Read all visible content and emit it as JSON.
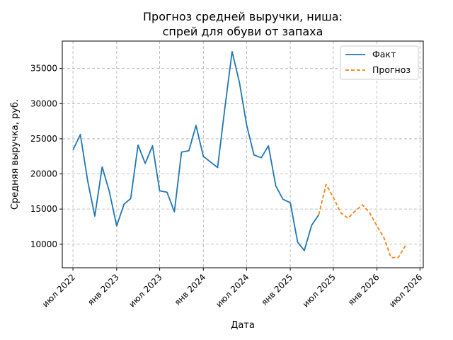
{
  "chart_data": {
    "type": "line",
    "title_lines": [
      "Прогноз средней выручки, ниша:",
      "спрей для обуви от запаха"
    ],
    "xlabel": "Дата",
    "ylabel": "Средняя выручка, руб.",
    "grid": true,
    "legend_position": "top-right",
    "xlim": [
      "2022-05-17",
      "2026-07-15"
    ],
    "ylim": [
      6650,
      38900
    ],
    "y_ticks": [
      10000,
      15000,
      20000,
      25000,
      30000,
      35000
    ],
    "x_ticks": [
      {
        "date": "2022-07-01",
        "label": "июл 2022"
      },
      {
        "date": "2023-01-01",
        "label": "янв 2023"
      },
      {
        "date": "2023-07-01",
        "label": "июл 2023"
      },
      {
        "date": "2024-01-01",
        "label": "янв 2024"
      },
      {
        "date": "2024-07-01",
        "label": "июл 2024"
      },
      {
        "date": "2025-01-01",
        "label": "янв 2025"
      },
      {
        "date": "2025-07-01",
        "label": "июл 2025"
      },
      {
        "date": "2026-01-01",
        "label": "янв 2026"
      },
      {
        "date": "2026-07-01",
        "label": "июл 2026"
      }
    ],
    "series": [
      {
        "name": "Факт",
        "color": "#1f77b4",
        "style": "solid",
        "points": [
          [
            "2022-07-01",
            23400
          ],
          [
            "2022-08-01",
            25600
          ],
          [
            "2022-09-01",
            19000
          ],
          [
            "2022-10-01",
            14000
          ],
          [
            "2022-11-01",
            21000
          ],
          [
            "2022-12-01",
            17500
          ],
          [
            "2023-01-01",
            12600
          ],
          [
            "2023-02-01",
            15700
          ],
          [
            "2023-03-01",
            16500
          ],
          [
            "2023-04-01",
            24100
          ],
          [
            "2023-05-01",
            21500
          ],
          [
            "2023-06-01",
            24000
          ],
          [
            "2023-07-01",
            17600
          ],
          [
            "2023-08-01",
            17400
          ],
          [
            "2023-09-01",
            14600
          ],
          [
            "2023-10-01",
            23100
          ],
          [
            "2023-11-01",
            23300
          ],
          [
            "2023-12-01",
            26900
          ],
          [
            "2024-01-01",
            22500
          ],
          [
            "2024-03-01",
            20900
          ],
          [
            "2024-04-01",
            29500
          ],
          [
            "2024-05-01",
            37400
          ],
          [
            "2024-06-01",
            33000
          ],
          [
            "2024-07-01",
            27000
          ],
          [
            "2024-08-01",
            22700
          ],
          [
            "2024-09-01",
            22300
          ],
          [
            "2024-10-01",
            24000
          ],
          [
            "2024-11-01",
            18300
          ],
          [
            "2024-12-01",
            16400
          ],
          [
            "2025-01-01",
            15900
          ],
          [
            "2025-02-01",
            10300
          ],
          [
            "2025-03-01",
            9100
          ],
          [
            "2025-04-01",
            12700
          ],
          [
            "2025-05-01",
            14200
          ]
        ]
      },
      {
        "name": "Прогноз",
        "color": "#ff7f0e",
        "style": "dashed",
        "points": [
          [
            "2025-05-01",
            14200
          ],
          [
            "2025-06-01",
            18500
          ],
          [
            "2025-07-01",
            16700
          ],
          [
            "2025-08-01",
            14500
          ],
          [
            "2025-09-01",
            13700
          ],
          [
            "2025-10-01",
            14700
          ],
          [
            "2025-11-01",
            15600
          ],
          [
            "2025-12-01",
            14500
          ],
          [
            "2026-01-01",
            12600
          ],
          [
            "2026-02-01",
            10800
          ],
          [
            "2026-03-01",
            8100
          ],
          [
            "2026-04-01",
            8100
          ],
          [
            "2026-05-01",
            9800
          ]
        ]
      }
    ]
  }
}
